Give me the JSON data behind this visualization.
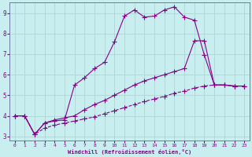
{
  "xlabel": "Windchill (Refroidissement éolien,°C)",
  "background_color": "#c8eef0",
  "grid_color": "#b0d4d4",
  "line_color": "#880088",
  "xlim": [
    -0.5,
    23.5
  ],
  "ylim": [
    2.8,
    9.5
  ],
  "xticks": [
    0,
    1,
    2,
    3,
    4,
    5,
    6,
    7,
    8,
    9,
    10,
    11,
    12,
    13,
    14,
    15,
    16,
    17,
    18,
    19,
    20,
    21,
    22,
    23
  ],
  "yticks": [
    3,
    4,
    5,
    6,
    7,
    8,
    9
  ],
  "line1_x": [
    0,
    1,
    2,
    3,
    4,
    5,
    6,
    7,
    8,
    9,
    10,
    11,
    12,
    13,
    14,
    15,
    16,
    17,
    18,
    19,
    20,
    21,
    22,
    23
  ],
  "line1_y": [
    4.0,
    4.0,
    3.1,
    3.65,
    3.75,
    3.8,
    5.5,
    5.85,
    6.3,
    6.6,
    7.6,
    8.85,
    9.15,
    8.8,
    8.85,
    9.15,
    9.3,
    8.8,
    8.65,
    6.95,
    5.5,
    5.5,
    5.45,
    5.45
  ],
  "line2_x": [
    0,
    1,
    2,
    3,
    4,
    5,
    6,
    7,
    8,
    9,
    10,
    11,
    12,
    13,
    14,
    15,
    16,
    17,
    18,
    19,
    20,
    21,
    22,
    23
  ],
  "line2_y": [
    4.0,
    4.0,
    3.1,
    3.65,
    3.8,
    3.9,
    4.0,
    4.3,
    4.55,
    4.75,
    5.0,
    5.25,
    5.5,
    5.7,
    5.85,
    6.0,
    6.15,
    6.3,
    7.65,
    7.65,
    5.5,
    5.5,
    5.45,
    5.45
  ],
  "line3_x": [
    0,
    1,
    2,
    3,
    4,
    5,
    6,
    7,
    8,
    9,
    10,
    11,
    12,
    13,
    14,
    15,
    16,
    17,
    18,
    19,
    20,
    21,
    22,
    23
  ],
  "line3_y": [
    4.0,
    4.0,
    3.1,
    3.4,
    3.55,
    3.65,
    3.75,
    3.85,
    3.95,
    4.1,
    4.25,
    4.4,
    4.55,
    4.7,
    4.82,
    4.95,
    5.1,
    5.2,
    5.35,
    5.45,
    5.5,
    5.5,
    5.45,
    5.45
  ]
}
